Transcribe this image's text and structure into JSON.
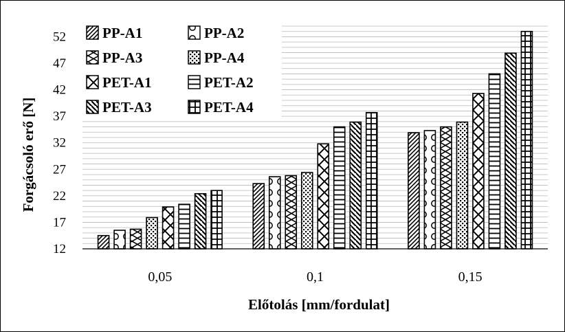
{
  "chart_data": {
    "type": "bar",
    "title": "",
    "xlabel": "Előtolás [mm/fordulat]",
    "ylabel": "Forgácsoló erő [N]",
    "ylim": [
      12,
      54
    ],
    "yticks": [
      "12",
      "17",
      "22",
      "27",
      "32",
      "37",
      "42",
      "47",
      "52"
    ],
    "categories": [
      "0,05",
      "0,1",
      "0,15"
    ],
    "grid": "horizontal-minor",
    "legend_position": "top-left",
    "series": [
      {
        "name": "PP-A1",
        "pattern": "diag-right",
        "values": [
          14.5,
          24.3,
          33.9
        ]
      },
      {
        "name": "PP-A2",
        "pattern": "circles",
        "values": [
          15.5,
          25.6,
          34.3
        ]
      },
      {
        "name": "PP-A3",
        "pattern": "zigzag",
        "values": [
          15.7,
          25.8,
          35.0
        ]
      },
      {
        "name": "PP-A4",
        "pattern": "dots",
        "values": [
          17.9,
          26.4,
          35.9
        ]
      },
      {
        "name": "PET-A1",
        "pattern": "crosshatch",
        "values": [
          19.9,
          31.8,
          41.3
        ]
      },
      {
        "name": "PET-A2",
        "pattern": "horizontal",
        "values": [
          20.4,
          35.0,
          45.0
        ]
      },
      {
        "name": "PET-A3",
        "pattern": "diag-left",
        "values": [
          22.4,
          35.9,
          48.9
        ]
      },
      {
        "name": "PET-A4",
        "pattern": "grid",
        "values": [
          23.0,
          37.7,
          53.0
        ]
      }
    ]
  }
}
